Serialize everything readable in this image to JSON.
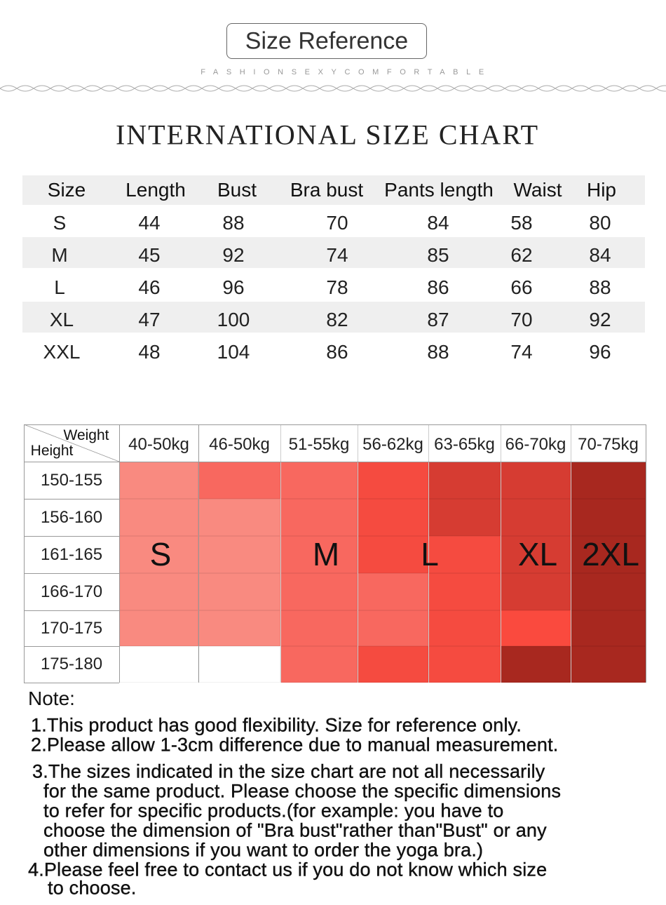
{
  "header": {
    "title": "Size Reference",
    "subtitle": "FASHIONSEXYCOMFORTABLE"
  },
  "size_chart": {
    "title": "INTERNATIONAL SIZE CHART",
    "columns": [
      "Size",
      "Length",
      "Bust",
      "Bra bust",
      "Pants length",
      "Waist",
      "Hip"
    ],
    "rows": [
      [
        "S",
        "44",
        "88",
        "70",
        "84",
        "58",
        "80"
      ],
      [
        "M",
        "45",
        "92",
        "74",
        "85",
        "62",
        "84"
      ],
      [
        "L",
        "46",
        "96",
        "78",
        "86",
        "66",
        "88"
      ],
      [
        "XL",
        "47",
        "100",
        "82",
        "87",
        "70",
        "92"
      ],
      [
        "XXL",
        "48",
        "104",
        "86",
        "88",
        "74",
        "96"
      ]
    ]
  },
  "fit_chart": {
    "corner_weight": "Weight",
    "corner_height": "Height",
    "weights": [
      "40-50kg",
      "46-50kg",
      "51-55kg",
      "56-62kg",
      "63-65kg",
      "66-70kg",
      "70-75kg"
    ],
    "heights": [
      "150-155",
      "156-160",
      "161-165",
      "166-170",
      "170-175",
      "175-180"
    ],
    "size_labels": [
      "S",
      "M",
      "L",
      "XL",
      "2XL"
    ]
  },
  "notes": {
    "title": "Note:",
    "items": [
      [
        "1.This product has good flexibility. Size for reference only."
      ],
      [
        "2.Please allow 1-3cm difference due to manual measurement."
      ],
      [
        "3.The sizes indicated in the size chart are not all necessarily",
        "for the same product. Please choose the specific dimensions",
        "to refer for specific products.(for example: you have to",
        "choose the dimension of \"Bra bust\"rather than\"Bust\" or any",
        "other dimensions if you want to order the yoga bra.)"
      ],
      [
        "4.Please feel free to contact us if you do not know which size",
        "to choose."
      ]
    ]
  }
}
